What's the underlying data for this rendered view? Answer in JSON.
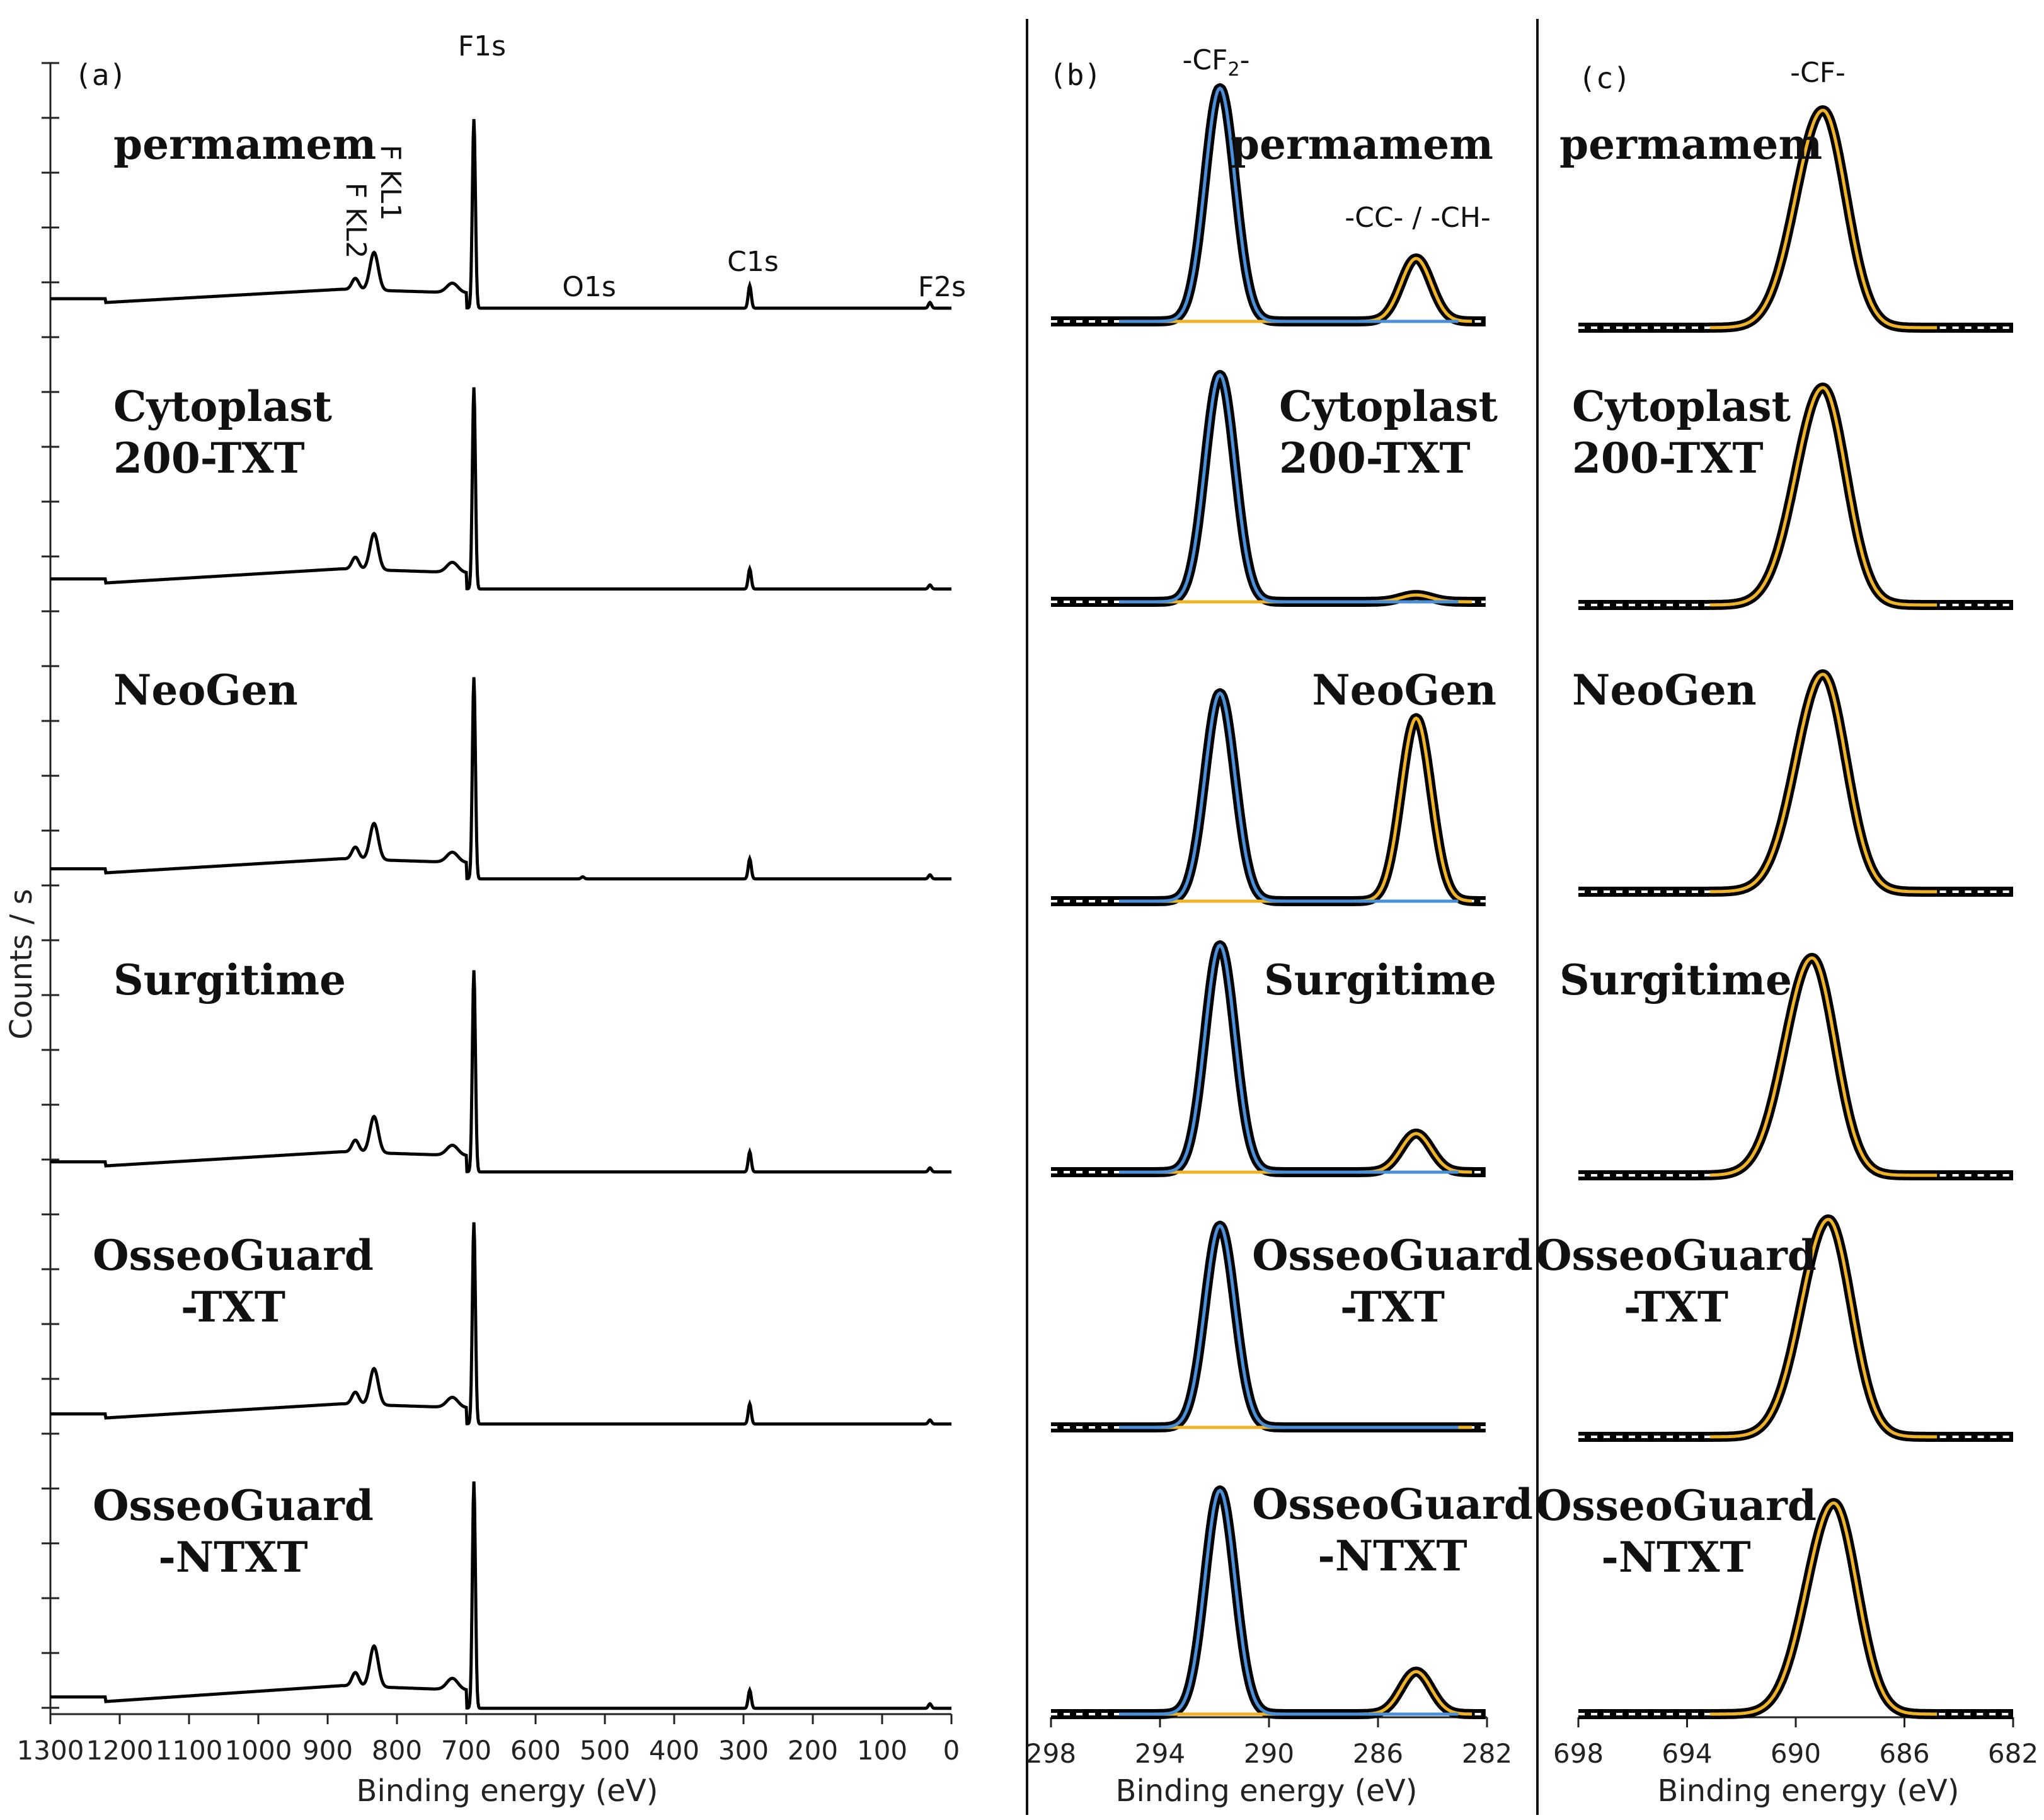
{
  "chart_data": [
    {
      "panel": "(a)",
      "type": "line",
      "xlabel": "Binding energy (eV)",
      "ylabel": "Counts / s",
      "xlim": [
        1300,
        0
      ],
      "xticks": [
        1300,
        1200,
        1100,
        1000,
        900,
        800,
        700,
        600,
        500,
        400,
        300,
        200,
        100,
        0
      ],
      "annotations": [
        "F1s",
        "F KL1",
        "F KL2",
        "O1s",
        "C1s",
        "F2s"
      ],
      "series_order": [
        "permamem",
        "Cytoplast\n200-TXT",
        "NeoGen",
        "Surgitime",
        "OsseoGuard\n-TXT",
        "OsseoGuard\n-NTXT"
      ],
      "peaks": [
        {
          "name": "F1s",
          "x": 689,
          "rel": [
            1.0,
            1.0,
            1.0,
            1.0,
            1.0,
            1.0
          ]
        },
        {
          "name": "F KL1",
          "x": 833,
          "rel": [
            0.2,
            0.18,
            0.18,
            0.18,
            0.18,
            0.18
          ]
        },
        {
          "name": "F KL2",
          "x": 860,
          "rel": [
            0.06,
            0.06,
            0.06,
            0.06,
            0.06,
            0.06
          ]
        },
        {
          "name": "O1s",
          "x": 532,
          "rel": [
            0.0,
            0.0,
            0.01,
            0.0,
            0.0,
            0.0
          ]
        },
        {
          "name": "C1s",
          "x": 291,
          "rel": [
            0.12,
            0.1,
            0.1,
            0.1,
            0.1,
            0.08
          ]
        },
        {
          "name": "F2s",
          "x": 31,
          "rel": [
            0.03,
            0.02,
            0.02,
            0.02,
            0.02,
            0.02
          ]
        }
      ]
    },
    {
      "panel": "(b)",
      "type": "line",
      "xlabel": "Binding energy (eV)",
      "xlim": [
        298,
        282
      ],
      "xticks": [
        298,
        294,
        290,
        286,
        282
      ],
      "annotations": [
        "-CF2-",
        "-CC- / -CH-"
      ],
      "components": [
        {
          "name": "-CF2-",
          "center": 291.8,
          "color": "#4a90d9"
        },
        {
          "name": "-CC- / -CH-",
          "center": 284.6,
          "color": "#f0b323"
        }
      ],
      "series": [
        {
          "name": "permamem",
          "cf2": 1.0,
          "cc": 0.27
        },
        {
          "name": "Cytoplast\n200-TXT",
          "cf2": 1.0,
          "cc": 0.03
        },
        {
          "name": "NeoGen",
          "cf2": 1.0,
          "cc": 0.88
        },
        {
          "name": "Surgitime",
          "cf2": 1.0,
          "cc": 0.17
        },
        {
          "name": "OsseoGuard\n-TXT",
          "cf2": 1.0,
          "cc": 0.0
        },
        {
          "name": "OsseoGuard\n-NTXT",
          "cf2": 1.0,
          "cc": 0.19
        }
      ]
    },
    {
      "panel": "(c)",
      "type": "line",
      "xlabel": "Binding energy (eV)",
      "xlim": [
        698,
        682
      ],
      "xticks": [
        698,
        694,
        690,
        686,
        682
      ],
      "annotations": [
        "-CF-"
      ],
      "components": [
        {
          "name": "-CF-",
          "center": 689.0,
          "color": "#f0b323"
        }
      ],
      "series": [
        {
          "name": "permamem",
          "cf": 1.0
        },
        {
          "name": "Cytoplast\n200-TXT",
          "cf": 1.0
        },
        {
          "name": "NeoGen",
          "cf": 1.0
        },
        {
          "name": "Surgitime",
          "cf": 1.0
        },
        {
          "name": "OsseoGuard\n-TXT",
          "cf": 1.0
        },
        {
          "name": "OsseoGuard\n-NTXT",
          "cf": 1.0
        }
      ]
    }
  ]
}
